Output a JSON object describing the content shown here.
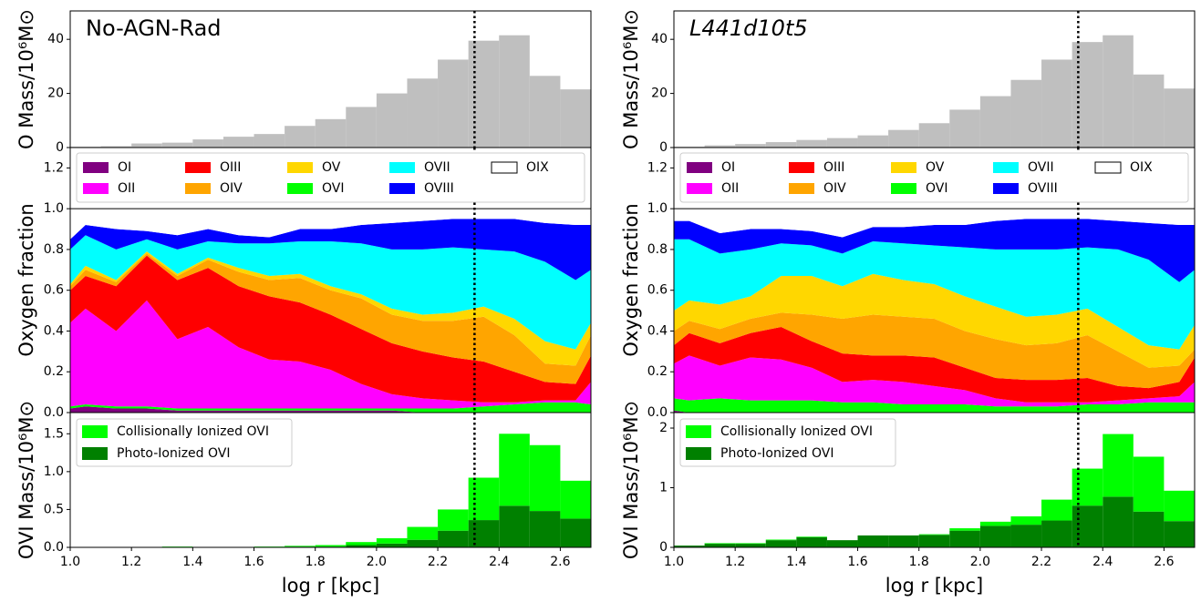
{
  "chart_data": [
    {
      "type": "histogram",
      "title": "No-AGN-Rad",
      "ylabel": "O Mass/10⁶M⊙",
      "color": "#bfbfbf",
      "bins": [
        1.0,
        1.1,
        1.2,
        1.3,
        1.4,
        1.5,
        1.6,
        1.7,
        1.8,
        1.9,
        2.0,
        2.1,
        2.2,
        2.3,
        2.4,
        2.5,
        2.6,
        2.7
      ],
      "values": [
        0.3,
        0.5,
        1.5,
        1.8,
        3,
        4,
        5,
        8,
        10.5,
        15,
        20,
        25.5,
        32.5,
        39.5,
        41.5,
        26.5,
        21.5
      ],
      "xlim": [
        1.0,
        2.7
      ],
      "ylim": [
        0,
        50.5
      ],
      "yticks": [
        0,
        20,
        40
      ],
      "vline": 2.32
    },
    {
      "type": "area",
      "ylabel": "Oxygen fraction",
      "x": [
        1.0,
        1.05,
        1.15,
        1.25,
        1.35,
        1.45,
        1.55,
        1.65,
        1.75,
        1.85,
        1.95,
        2.05,
        2.15,
        2.25,
        2.35,
        2.45,
        2.55,
        2.65,
        2.7
      ],
      "series": [
        {
          "name": "OI",
          "color": "#800080",
          "values": [
            0.02,
            0.03,
            0.02,
            0.02,
            0.01,
            0.01,
            0.01,
            0.01,
            0.01,
            0.01,
            0.01,
            0.01,
            0,
            0,
            0,
            0,
            0,
            0,
            0
          ]
        },
        {
          "name": "OVI",
          "color": "#00ff00",
          "values": [
            0.01,
            0.01,
            0.01,
            0.01,
            0.01,
            0.01,
            0.01,
            0.01,
            0.01,
            0.01,
            0.01,
            0.01,
            0.02,
            0.02,
            0.03,
            0.04,
            0.05,
            0.05,
            0.04
          ]
        },
        {
          "name": "OII",
          "color": "#ff00ff",
          "values": [
            0.41,
            0.47,
            0.37,
            0.52,
            0.34,
            0.4,
            0.3,
            0.24,
            0.23,
            0.19,
            0.12,
            0.07,
            0.05,
            0.04,
            0.02,
            0.01,
            0.01,
            0.01,
            0.11
          ]
        },
        {
          "name": "OIII",
          "color": "#ff0000",
          "values": [
            0.16,
            0.16,
            0.22,
            0.22,
            0.29,
            0.29,
            0.3,
            0.31,
            0.29,
            0.27,
            0.27,
            0.25,
            0.23,
            0.21,
            0.2,
            0.15,
            0.09,
            0.08,
            0.13
          ]
        },
        {
          "name": "OIV",
          "color": "#ffa500",
          "values": [
            0.02,
            0.03,
            0.02,
            0.01,
            0.02,
            0.04,
            0.07,
            0.08,
            0.12,
            0.12,
            0.15,
            0.14,
            0.15,
            0.18,
            0.22,
            0.18,
            0.09,
            0.09,
            0.1
          ]
        },
        {
          "name": "OV",
          "color": "#ffd700",
          "values": [
            0.01,
            0.02,
            0.01,
            0.01,
            0.01,
            0.01,
            0.02,
            0.02,
            0.02,
            0.02,
            0.02,
            0.03,
            0.03,
            0.04,
            0.05,
            0.08,
            0.11,
            0.08,
            0.06
          ]
        },
        {
          "name": "OVII",
          "color": "#00ffff",
          "values": [
            0.17,
            0.15,
            0.15,
            0.06,
            0.12,
            0.08,
            0.12,
            0.16,
            0.16,
            0.22,
            0.25,
            0.29,
            0.32,
            0.32,
            0.28,
            0.33,
            0.39,
            0.34,
            0.26
          ]
        },
        {
          "name": "OVIII",
          "color": "#0000ff",
          "values": [
            0.05,
            0.05,
            0.1,
            0.04,
            0.07,
            0.06,
            0.04,
            0.03,
            0.06,
            0.06,
            0.09,
            0.13,
            0.14,
            0.14,
            0.15,
            0.16,
            0.19,
            0.27,
            0.22
          ]
        },
        {
          "name": "OIX",
          "color": "#ffffff",
          "values": [
            0.15,
            0.08,
            0.1,
            0.11,
            0.13,
            0.1,
            0.13,
            0.14,
            0.1,
            0.1,
            0.08,
            0.07,
            0.06,
            0.05,
            0.05,
            0.05,
            0.07,
            0.08,
            0.08
          ]
        }
      ],
      "xlim": [
        1.0,
        2.7
      ],
      "ylim": [
        0,
        1.3
      ],
      "yticks": [
        {
          "value": 0,
          "label": "0.0"
        },
        0.2,
        0.4,
        0.6,
        0.8,
        {
          "value": 1,
          "label": "1.0"
        },
        1.2
      ],
      "hline": 1,
      "vline": 2.32
    },
    {
      "type": "histogram",
      "ylabel": "OVI Mass/10⁶M⊙",
      "xlabel": "log r [kpc]",
      "bins": [
        1.0,
        1.1,
        1.2,
        1.3,
        1.4,
        1.5,
        1.6,
        1.7,
        1.8,
        1.9,
        2.0,
        2.1,
        2.2,
        2.3,
        2.4,
        2.5,
        2.6,
        2.7
      ],
      "series": [
        {
          "name": "Collisionally Ionized OVI",
          "color": "#00ff00",
          "values": [
            0,
            0,
            0,
            0.01,
            0,
            0,
            0.01,
            0.01,
            0.02,
            0.04,
            0.07,
            0.17,
            0.28,
            0.56,
            0.95,
            0.87,
            0.5
          ]
        },
        {
          "name": "Photo-Ionized OVI",
          "color": "#008000",
          "values": [
            0,
            0,
            0,
            0,
            0,
            0,
            0,
            0.01,
            0.01,
            0.03,
            0.05,
            0.1,
            0.22,
            0.36,
            0.55,
            0.48,
            0.38
          ]
        }
      ],
      "xlim": [
        1.0,
        2.7
      ],
      "ylim": [
        0,
        1.78
      ],
      "yticks": [
        {
          "value": 0,
          "label": "0.0"
        },
        0.5,
        {
          "value": 1,
          "label": "1.0"
        },
        1.5
      ],
      "xticks": [
        {
          "value": 1,
          "label": "1.0"
        },
        1.2,
        1.4,
        1.6,
        1.8,
        {
          "value": 2,
          "label": "2.0"
        },
        2.2,
        2.4,
        2.6
      ],
      "vline": 2.32
    },
    {
      "type": "histogram",
      "title": "L441d10t5",
      "ylabel": "O Mass/10⁶M⊙",
      "color": "#bfbfbf",
      "bins": [
        1.0,
        1.1,
        1.2,
        1.3,
        1.4,
        1.5,
        1.6,
        1.7,
        1.8,
        1.9,
        2.0,
        2.1,
        2.2,
        2.3,
        2.4,
        2.5,
        2.6,
        2.7
      ],
      "values": [
        0.3,
        0.8,
        1.3,
        2,
        2.8,
        3.5,
        4.5,
        6.5,
        9,
        14,
        19,
        25,
        32.5,
        39,
        41.5,
        27,
        21.8
      ],
      "xlim": [
        1.0,
        2.7
      ],
      "ylim": [
        0,
        50.5
      ],
      "yticks": [
        0,
        20,
        40
      ],
      "vline": 2.32
    },
    {
      "type": "area",
      "ylabel": "Oxygen fraction",
      "x": [
        1.0,
        1.05,
        1.15,
        1.25,
        1.35,
        1.45,
        1.55,
        1.65,
        1.75,
        1.85,
        1.95,
        2.05,
        2.15,
        2.25,
        2.35,
        2.45,
        2.55,
        2.65,
        2.7
      ],
      "series": [
        {
          "name": "OI",
          "color": "#800080",
          "values": [
            0.01,
            0,
            0,
            0,
            0,
            0,
            0,
            0,
            0,
            0,
            0,
            0,
            0,
            0,
            0,
            0,
            0,
            0,
            0
          ]
        },
        {
          "name": "OVI",
          "color": "#00ff00",
          "values": [
            0.06,
            0.06,
            0.07,
            0.06,
            0.06,
            0.06,
            0.05,
            0.05,
            0.04,
            0.04,
            0.04,
            0.03,
            0.03,
            0.03,
            0.04,
            0.04,
            0.05,
            0.05,
            0.05
          ]
        },
        {
          "name": "OII",
          "color": "#ff00ff",
          "values": [
            0.17,
            0.22,
            0.16,
            0.21,
            0.2,
            0.16,
            0.1,
            0.11,
            0.11,
            0.09,
            0.07,
            0.04,
            0.02,
            0.02,
            0.01,
            0.02,
            0.02,
            0.03,
            0.1
          ]
        },
        {
          "name": "OIII",
          "color": "#ff0000",
          "values": [
            0.09,
            0.11,
            0.11,
            0.12,
            0.16,
            0.13,
            0.14,
            0.12,
            0.13,
            0.14,
            0.11,
            0.1,
            0.11,
            0.11,
            0.12,
            0.07,
            0.05,
            0.07,
            0.12
          ]
        },
        {
          "name": "OIV",
          "color": "#ffa500",
          "values": [
            0.07,
            0.06,
            0.07,
            0.07,
            0.07,
            0.13,
            0.17,
            0.2,
            0.19,
            0.19,
            0.18,
            0.19,
            0.17,
            0.18,
            0.21,
            0.17,
            0.1,
            0.08,
            0.04
          ]
        },
        {
          "name": "OV",
          "color": "#ffd700",
          "values": [
            0.1,
            0.1,
            0.12,
            0.11,
            0.18,
            0.19,
            0.16,
            0.2,
            0.18,
            0.17,
            0.17,
            0.16,
            0.14,
            0.14,
            0.13,
            0.12,
            0.11,
            0.08,
            0.12
          ]
        },
        {
          "name": "OVII",
          "color": "#00ffff",
          "values": [
            0.35,
            0.3,
            0.25,
            0.23,
            0.16,
            0.15,
            0.16,
            0.16,
            0.18,
            0.19,
            0.24,
            0.28,
            0.33,
            0.32,
            0.3,
            0.38,
            0.42,
            0.33,
            0.27
          ]
        },
        {
          "name": "OVIII",
          "color": "#0000ff",
          "values": [
            0.09,
            0.09,
            0.1,
            0.1,
            0.07,
            0.07,
            0.08,
            0.07,
            0.08,
            0.1,
            0.11,
            0.14,
            0.15,
            0.15,
            0.14,
            0.14,
            0.18,
            0.28,
            0.22
          ]
        },
        {
          "name": "OIX",
          "color": "#ffffff",
          "values": [
            0.06,
            0.06,
            0.12,
            0.1,
            0.1,
            0.11,
            0.14,
            0.09,
            0.09,
            0.08,
            0.08,
            0.06,
            0.05,
            0.05,
            0.05,
            0.06,
            0.07,
            0.08,
            0.08
          ]
        }
      ],
      "xlim": [
        1.0,
        2.7
      ],
      "ylim": [
        0,
        1.3
      ],
      "yticks": [
        {
          "value": 0,
          "label": "0.0"
        },
        0.2,
        0.4,
        0.6,
        0.8,
        {
          "value": 1,
          "label": "1.0"
        },
        1.2
      ],
      "hline": 1,
      "vline": 2.32
    },
    {
      "type": "histogram",
      "ylabel": "OVI Mass/10⁶M⊙",
      "xlabel": "log r [kpc]",
      "bins": [
        1.0,
        1.1,
        1.2,
        1.3,
        1.4,
        1.5,
        1.6,
        1.7,
        1.8,
        1.9,
        2.0,
        2.1,
        2.2,
        2.3,
        2.4,
        2.5,
        2.6,
        2.7
      ],
      "series": [
        {
          "name": "Collisionally Ionized OVI",
          "color": "#00ff00",
          "values": [
            0,
            0.01,
            0.01,
            0.01,
            0.01,
            0,
            0,
            0,
            0.01,
            0.04,
            0.07,
            0.14,
            0.35,
            0.62,
            1.05,
            0.92,
            0.51
          ]
        },
        {
          "name": "Photo-Ionized OVI",
          "color": "#008000",
          "values": [
            0.03,
            0.06,
            0.06,
            0.12,
            0.17,
            0.12,
            0.2,
            0.2,
            0.21,
            0.28,
            0.36,
            0.38,
            0.45,
            0.7,
            0.85,
            0.6,
            0.44
          ]
        }
      ],
      "xlim": [
        1.0,
        2.7
      ],
      "ylim": [
        0,
        2.26
      ],
      "yticks": [
        0,
        1,
        2
      ],
      "xticks": [
        {
          "value": 1,
          "label": "1.0"
        },
        1.2,
        1.4,
        1.6,
        1.8,
        {
          "value": 2,
          "label": "2.0"
        },
        2.2,
        2.4,
        2.6
      ],
      "vline": 2.32
    }
  ]
}
